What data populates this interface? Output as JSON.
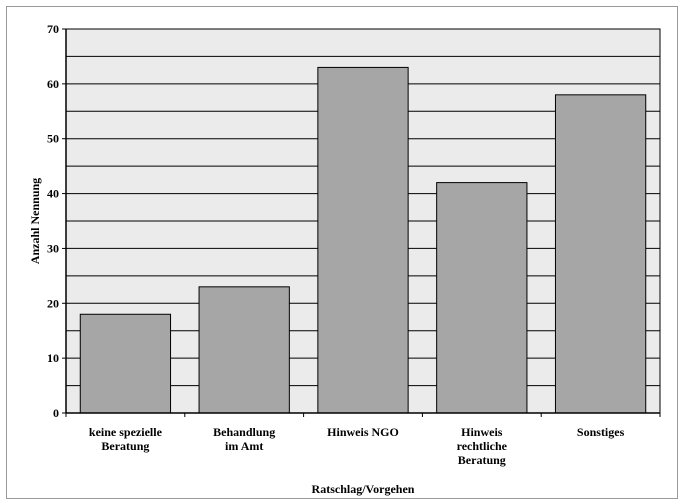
{
  "chart_data": {
    "type": "bar",
    "categories": [
      [
        "keine spezielle",
        "Beratung"
      ],
      [
        "Behandlung",
        "im Amt"
      ],
      [
        "Hinweis NGO"
      ],
      [
        "Hinweis",
        "rechtliche",
        "Beratung"
      ],
      [
        "Sonstiges"
      ]
    ],
    "values": [
      18,
      23,
      63,
      42,
      58
    ],
    "xlabel": "Ratschlag/Vorgehen",
    "ylabel": "Anzahl Nennung",
    "ylim": [
      0,
      70
    ],
    "yticks": [
      "0",
      "10",
      "20",
      "30",
      "40",
      "50",
      "60",
      "70"
    ],
    "grid": true,
    "colors": {
      "bar": "#a6a6a6",
      "plot_background": "#ebebeb",
      "bar_stroke": "#000000"
    }
  }
}
